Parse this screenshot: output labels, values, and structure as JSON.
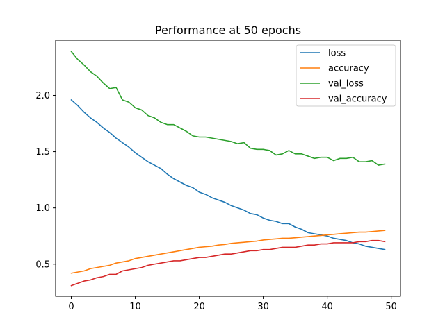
{
  "chart_data": {
    "type": "line",
    "title": "Performance at 50 epochs",
    "xlabel": "",
    "ylabel": "",
    "xlim": [
      -2.45,
      51.45
    ],
    "ylim": [
      0.215,
      2.49
    ],
    "xticks": [
      0,
      10,
      20,
      30,
      40,
      50
    ],
    "yticks": [
      0.5,
      1.0,
      1.5,
      2.0
    ],
    "ytick_labels": [
      "0.5",
      "1.0",
      "1.5",
      "2.0"
    ],
    "grid": false,
    "legend_position": "top-right",
    "x": [
      0,
      1,
      2,
      3,
      4,
      5,
      6,
      7,
      8,
      9,
      10,
      11,
      12,
      13,
      14,
      15,
      16,
      17,
      18,
      19,
      20,
      21,
      22,
      23,
      24,
      25,
      26,
      27,
      28,
      29,
      30,
      31,
      32,
      33,
      34,
      35,
      36,
      37,
      38,
      39,
      40,
      41,
      42,
      43,
      44,
      45,
      46,
      47,
      48,
      49
    ],
    "series": [
      {
        "name": "loss",
        "color": "#1f77b4",
        "values": [
          1.96,
          1.91,
          1.85,
          1.8,
          1.76,
          1.71,
          1.67,
          1.62,
          1.58,
          1.54,
          1.49,
          1.45,
          1.41,
          1.38,
          1.35,
          1.3,
          1.26,
          1.23,
          1.2,
          1.18,
          1.14,
          1.12,
          1.09,
          1.07,
          1.05,
          1.02,
          1.0,
          0.98,
          0.95,
          0.94,
          0.91,
          0.89,
          0.88,
          0.86,
          0.86,
          0.83,
          0.81,
          0.78,
          0.77,
          0.76,
          0.75,
          0.73,
          0.72,
          0.71,
          0.69,
          0.68,
          0.66,
          0.65,
          0.64,
          0.63
        ]
      },
      {
        "name": "accuracy",
        "color": "#ff7f0e",
        "values": [
          0.42,
          0.43,
          0.44,
          0.46,
          0.47,
          0.48,
          0.49,
          0.51,
          0.52,
          0.53,
          0.55,
          0.56,
          0.57,
          0.58,
          0.59,
          0.6,
          0.61,
          0.62,
          0.63,
          0.64,
          0.65,
          0.655,
          0.66,
          0.67,
          0.675,
          0.685,
          0.69,
          0.695,
          0.7,
          0.705,
          0.715,
          0.72,
          0.725,
          0.73,
          0.73,
          0.735,
          0.74,
          0.745,
          0.75,
          0.755,
          0.76,
          0.765,
          0.77,
          0.775,
          0.78,
          0.785,
          0.785,
          0.79,
          0.795,
          0.8
        ]
      },
      {
        "name": "val_loss",
        "color": "#2ca02c",
        "values": [
          2.39,
          2.32,
          2.27,
          2.21,
          2.17,
          2.11,
          2.06,
          2.07,
          1.96,
          1.94,
          1.89,
          1.87,
          1.82,
          1.8,
          1.76,
          1.74,
          1.74,
          1.71,
          1.68,
          1.64,
          1.63,
          1.63,
          1.62,
          1.61,
          1.6,
          1.59,
          1.57,
          1.58,
          1.53,
          1.52,
          1.52,
          1.51,
          1.47,
          1.48,
          1.51,
          1.48,
          1.48,
          1.46,
          1.44,
          1.45,
          1.45,
          1.42,
          1.44,
          1.44,
          1.45,
          1.41,
          1.41,
          1.42,
          1.38,
          1.39
        ]
      },
      {
        "name": "val_accuracy",
        "color": "#d62728",
        "values": [
          0.31,
          0.33,
          0.35,
          0.36,
          0.38,
          0.39,
          0.41,
          0.41,
          0.44,
          0.45,
          0.46,
          0.47,
          0.49,
          0.5,
          0.51,
          0.52,
          0.53,
          0.53,
          0.54,
          0.55,
          0.56,
          0.56,
          0.57,
          0.58,
          0.59,
          0.59,
          0.6,
          0.61,
          0.62,
          0.62,
          0.63,
          0.63,
          0.64,
          0.65,
          0.65,
          0.65,
          0.66,
          0.67,
          0.67,
          0.68,
          0.68,
          0.69,
          0.69,
          0.69,
          0.69,
          0.7,
          0.7,
          0.71,
          0.71,
          0.7
        ]
      }
    ]
  }
}
